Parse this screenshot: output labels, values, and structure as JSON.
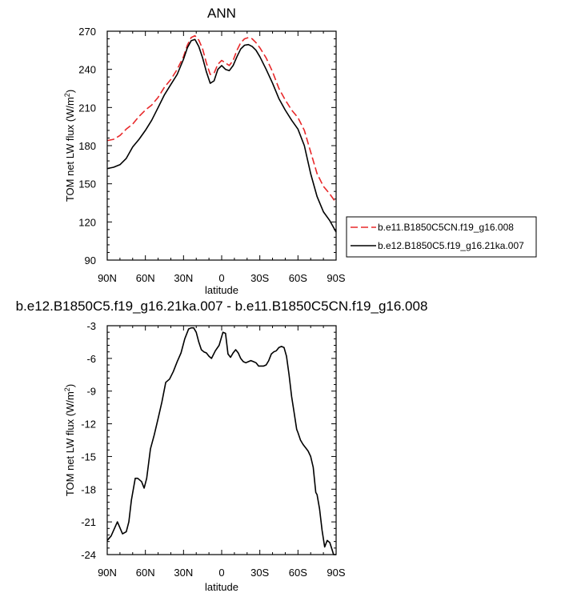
{
  "chart_data": [
    {
      "type": "line",
      "title": "ANN",
      "xlabel": "latitude",
      "ylabel": "TOM net LW flux (W/m",
      "ylabel_sup": "2",
      "ylabel_end": ")",
      "xlim": [
        90,
        -90
      ],
      "ylim": [
        90,
        270
      ],
      "xticks": [
        90,
        60,
        30,
        0,
        -30,
        -60,
        -90
      ],
      "xtick_labels": [
        "90N",
        "60N",
        "30N",
        "0",
        "30S",
        "60S",
        "90S"
      ],
      "yticks": [
        90,
        120,
        150,
        180,
        210,
        240,
        270
      ],
      "ytick_labels": [
        "90",
        "120",
        "150",
        "180",
        "210",
        "240",
        "270"
      ],
      "legend": "right",
      "series": [
        {
          "name": "b.e11.B1850C5CN.f19_g16.008",
          "color": "#e8282a",
          "dash": "dashed",
          "x": [
            90,
            85,
            80,
            75,
            70,
            65,
            60,
            55,
            50,
            45,
            40,
            35,
            30,
            27,
            24,
            21,
            18,
            15,
            12,
            9,
            6,
            3,
            0,
            -3,
            -6,
            -9,
            -12,
            -15,
            -18,
            -21,
            -24,
            -27,
            -30,
            -35,
            -40,
            -45,
            -50,
            -55,
            -60,
            -65,
            -70,
            -75,
            -80,
            -85,
            -90
          ],
          "values": [
            184,
            185,
            188,
            193,
            197,
            203,
            208,
            212,
            218,
            226,
            232,
            240,
            250,
            259,
            265,
            266.5,
            263,
            256,
            245,
            236,
            237,
            244,
            247,
            245,
            243,
            247,
            255,
            261,
            264,
            265,
            264,
            261,
            257,
            249,
            238,
            225,
            216,
            208,
            202,
            192,
            175,
            158,
            148,
            142,
            135
          ]
        },
        {
          "name": "b.e12.B1850C5.f19_g16.21ka.007",
          "color": "#000000",
          "dash": "solid",
          "x": [
            90,
            85,
            80,
            75,
            70,
            65,
            60,
            55,
            50,
            45,
            40,
            35,
            30,
            27,
            24,
            21,
            18,
            15,
            12,
            9,
            6,
            3,
            0,
            -3,
            -6,
            -9,
            -12,
            -15,
            -18,
            -21,
            -24,
            -27,
            -30,
            -35,
            -40,
            -45,
            -50,
            -55,
            -60,
            -65,
            -70,
            -75,
            -80,
            -85,
            -90
          ],
          "values": [
            162,
            163,
            165,
            170,
            179,
            185,
            192,
            200,
            210,
            220,
            228,
            236,
            248,
            257,
            262.5,
            263.5,
            258,
            249,
            238,
            229,
            231,
            240,
            243,
            240,
            239,
            243,
            250,
            256,
            259,
            259.5,
            258,
            255,
            250,
            240,
            229,
            217,
            208,
            200,
            193,
            180,
            158,
            140,
            128,
            121,
            112
          ]
        }
      ]
    },
    {
      "type": "line",
      "title": "b.e12.B1850C5.f19_g16.21ka.007 - b.e11.B1850C5CN.f19_g16.008",
      "xlabel": "latitude",
      "ylabel": "TOM net LW flux (W/m",
      "ylabel_sup": "2",
      "ylabel_end": ")",
      "xlim": [
        90,
        -90
      ],
      "ylim": [
        -24,
        -3
      ],
      "xticks": [
        90,
        60,
        30,
        0,
        -30,
        -60,
        -90
      ],
      "xtick_labels": [
        "90N",
        "60N",
        "30N",
        "0",
        "30S",
        "60S",
        "90S"
      ],
      "yticks": [
        -24,
        -21,
        -18,
        -15,
        -12,
        -9,
        -6,
        -3
      ],
      "ytick_labels": [
        "-24",
        "-21",
        "-18",
        "-15",
        "-12",
        "-9",
        "-6",
        "-3"
      ],
      "series": [
        {
          "color": "#000000",
          "dash": "solid",
          "x": [
            90,
            87,
            82,
            78,
            75,
            73,
            71,
            68,
            66,
            63,
            61,
            59,
            56,
            53,
            50,
            47,
            44,
            41,
            38,
            35,
            32,
            29,
            26,
            24,
            22,
            20,
            18,
            16,
            14,
            12,
            10,
            8,
            5,
            2,
            -1,
            -3,
            -5,
            -7,
            -9,
            -11,
            -13,
            -15,
            -17,
            -19,
            -21,
            -23,
            -25,
            -27,
            -29,
            -31,
            -33,
            -35,
            -37,
            -39,
            -41,
            -43,
            -45,
            -47,
            -49,
            -51,
            -53,
            -55,
            -57,
            -59,
            -60,
            -62,
            -64,
            -66,
            -68,
            -70,
            -72,
            -74,
            -75,
            -77,
            -79,
            -81,
            -83,
            -85,
            -87,
            -88,
            -90
          ],
          "values": [
            -22.7,
            -22.3,
            -21.0,
            -22.1,
            -21.9,
            -21.0,
            -19.0,
            -17.0,
            -17.0,
            -17.3,
            -17.9,
            -17.0,
            -14.3,
            -13.0,
            -11.5,
            -10.0,
            -8.2,
            -7.9,
            -7.2,
            -6.3,
            -5.5,
            -4.2,
            -3.3,
            -3.2,
            -3.2,
            -3.6,
            -4.5,
            -5.2,
            -5.4,
            -5.5,
            -5.8,
            -6.0,
            -5.3,
            -4.8,
            -3.6,
            -3.7,
            -5.6,
            -5.9,
            -5.5,
            -5.2,
            -5.5,
            -6.0,
            -6.3,
            -6.4,
            -6.3,
            -6.2,
            -6.3,
            -6.4,
            -6.7,
            -6.7,
            -6.7,
            -6.6,
            -6.2,
            -5.6,
            -5.4,
            -5.3,
            -5.0,
            -4.9,
            -5.0,
            -5.8,
            -7.5,
            -9.5,
            -11.0,
            -12.5,
            -12.8,
            -13.5,
            -13.9,
            -14.2,
            -14.5,
            -15.0,
            -16.0,
            -18.3,
            -18.5,
            -19.8,
            -21.8,
            -23.3,
            -22.7,
            -22.9,
            -23.6,
            -24.0,
            -24.0
          ]
        }
      ]
    }
  ]
}
